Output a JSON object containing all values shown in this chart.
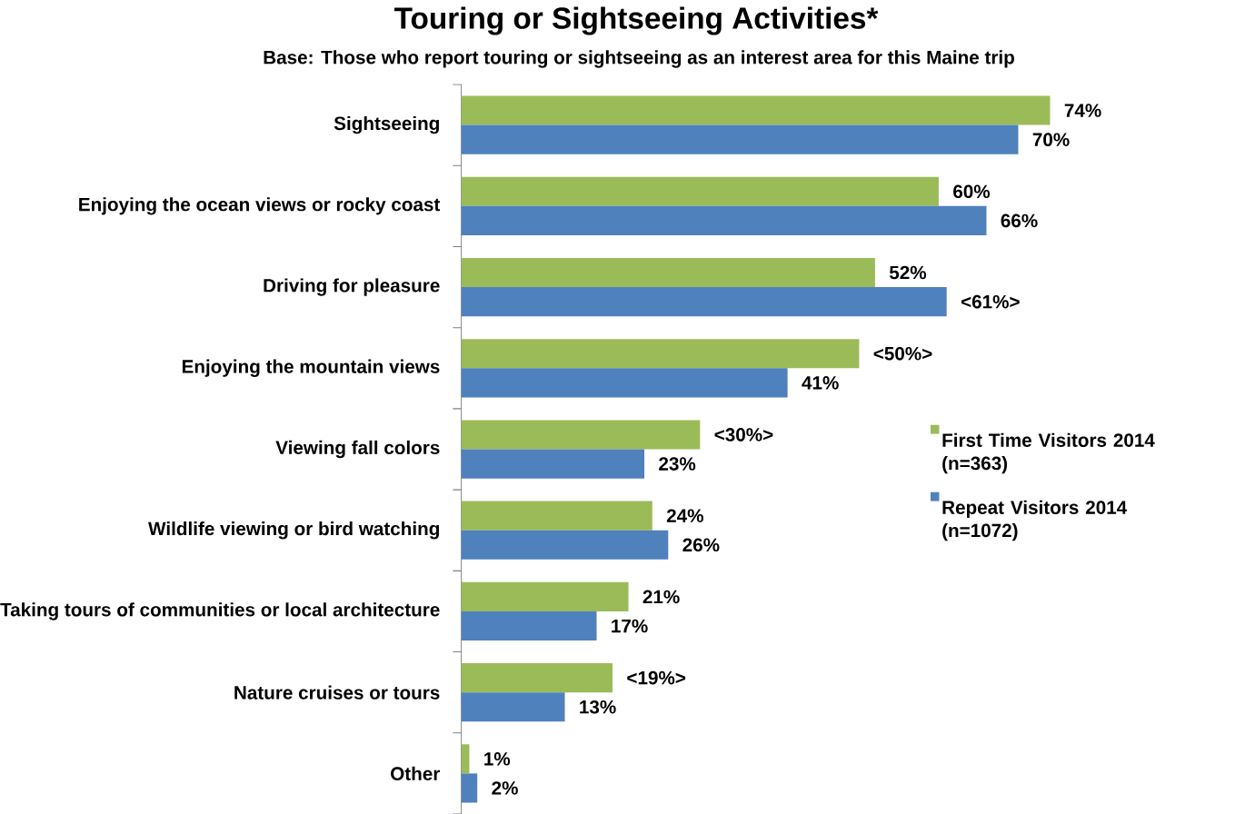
{
  "chart_data": {
    "type": "bar",
    "orientation": "horizontal",
    "title": "Touring or Sightseeing Activities*",
    "subtitle": "Base: Those who report touring or sightseeing as an interest area for this Maine trip",
    "categories": [
      "Sightseeing",
      "Enjoying the ocean views or rocky coast",
      "Driving for pleasure",
      "Enjoying the mountain views",
      "Viewing fall colors",
      "Wildlife viewing or bird watching",
      "Taking tours of communities or local architecture",
      "Nature cruises or tours",
      "Other"
    ],
    "series": [
      {
        "name": "First Time Visitors 2014 (n=363)",
        "color": "#9bbb59",
        "values": [
          74,
          60,
          52,
          50,
          30,
          24,
          21,
          19,
          1
        ],
        "value_labels": [
          "74%",
          "60%",
          "52%",
          "<50%>",
          "<30%>",
          "24%",
          "21%",
          "<19%>",
          "1%"
        ]
      },
      {
        "name": "Repeat Visitors 2014 (n=1072)",
        "color": "#4f81bd",
        "values": [
          70,
          66,
          61,
          41,
          23,
          26,
          17,
          13,
          2
        ],
        "value_labels": [
          "70%",
          "66%",
          "<61%>",
          "41%",
          "23%",
          "26%",
          "17%",
          "13%",
          "2%"
        ]
      }
    ],
    "legend": "right"
  }
}
